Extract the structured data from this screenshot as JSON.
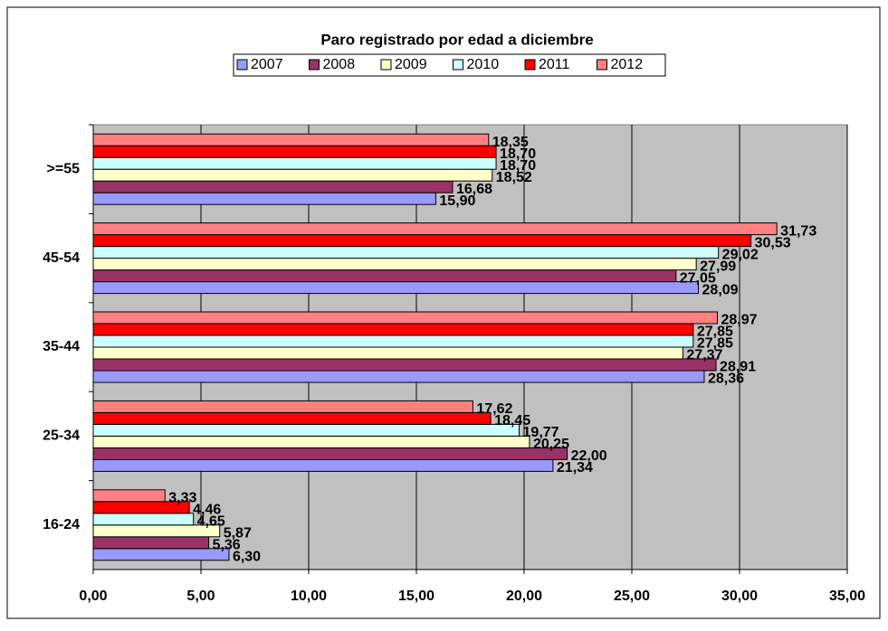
{
  "chart_data": {
    "type": "bar",
    "orientation": "horizontal",
    "title": "Paro registrado por edad a diciembre",
    "categories": [
      "16-24",
      "25-34",
      "35-44",
      "45-54",
      ">=55"
    ],
    "series": [
      {
        "name": "2007",
        "color": "#9999FF",
        "values": [
          6.3,
          21.34,
          28.36,
          28.09,
          15.9
        ],
        "value_labels": [
          "6,30",
          "21,34",
          "28,36",
          "28,09",
          "15,90"
        ]
      },
      {
        "name": "2008",
        "color": "#993366",
        "values": [
          5.36,
          22.0,
          28.91,
          27.05,
          16.68
        ],
        "value_labels": [
          "5,36",
          "22,00",
          "28,91",
          "27,05",
          "16,68"
        ]
      },
      {
        "name": "2009",
        "color": "#FFFFCC",
        "values": [
          5.87,
          20.25,
          27.37,
          27.99,
          18.52
        ],
        "value_labels": [
          "5,87",
          "20,25",
          "27,37",
          "27,99",
          "18,52"
        ]
      },
      {
        "name": "2010",
        "color": "#CCFFFF",
        "values": [
          4.65,
          19.77,
          27.85,
          29.02,
          18.7
        ],
        "value_labels": [
          "4,65",
          "19,77",
          "27,85",
          "29,02",
          "18,70"
        ]
      },
      {
        "name": "2011",
        "color": "#FF0000",
        "values": [
          4.46,
          18.45,
          27.85,
          30.53,
          18.7
        ],
        "value_labels": [
          "4,46",
          "18,45",
          "27,85",
          "30,53",
          "18,70"
        ]
      },
      {
        "name": "2012",
        "color": "#FF8080",
        "values": [
          3.33,
          17.62,
          28.97,
          31.73,
          18.35
        ],
        "value_labels": [
          "3,33",
          "17,62",
          "28,97",
          "31,73",
          "18,35"
        ]
      }
    ],
    "xlim": [
      0,
      35
    ],
    "xticks": [
      {
        "value": 0,
        "label": "0,00"
      },
      {
        "value": 5,
        "label": "5,00"
      },
      {
        "value": 10,
        "label": "10,00"
      },
      {
        "value": 15,
        "label": "15,00"
      },
      {
        "value": 20,
        "label": "20,00"
      },
      {
        "value": 25,
        "label": "25,00"
      },
      {
        "value": 30,
        "label": "30,00"
      },
      {
        "value": 35,
        "label": "35,00"
      }
    ],
    "grid": true,
    "legend": "top",
    "plot_background": "#C0C0C0"
  }
}
